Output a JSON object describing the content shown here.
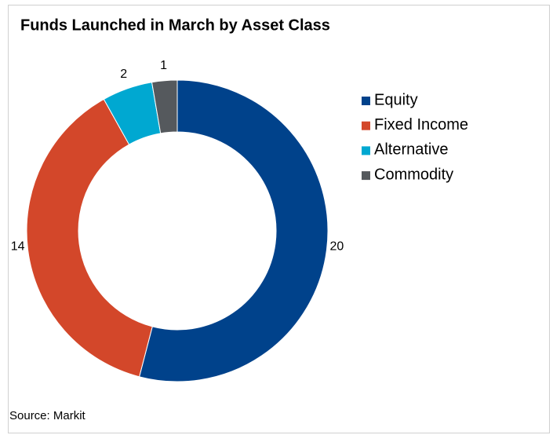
{
  "chart_data": {
    "type": "donut",
    "title": "Funds Launched in March by Asset Class",
    "categories": [
      "Equity",
      "Fixed Income",
      "Alternative",
      "Commodity"
    ],
    "values": [
      20,
      14,
      2,
      1
    ],
    "colors": [
      "#00428b",
      "#d3472a",
      "#00a8d1",
      "#55595d"
    ],
    "legend": "right",
    "source": "Source: Markit"
  }
}
